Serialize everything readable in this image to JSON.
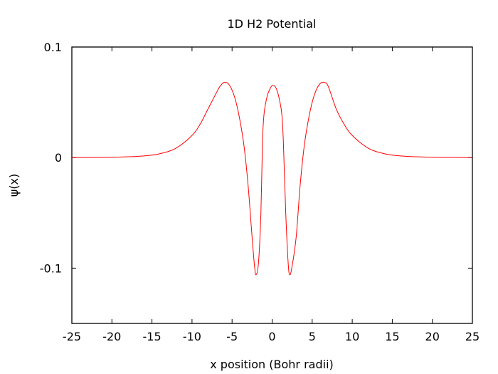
{
  "chart_data": {
    "type": "line",
    "title": "1D H2 Potential",
    "xlabel": "x position (Bohr radii)",
    "ylabel": "ψ(x)",
    "xlim": [
      -25,
      25
    ],
    "ylim": [
      -0.15,
      0.1
    ],
    "x_ticks": [
      -25,
      -20,
      -15,
      -10,
      -5,
      0,
      5,
      10,
      15,
      20,
      25
    ],
    "x_tick_labels": [
      "-25",
      "-20",
      "-15",
      "-10",
      "-5",
      "0",
      "5",
      "10",
      "15",
      "20",
      "25"
    ],
    "y_ticks": [
      -0.1,
      0,
      0.1
    ],
    "y_tick_labels": [
      "-0.1",
      "0",
      "0.1"
    ],
    "grid": false,
    "legend": "none",
    "series": [
      {
        "color": "#ff0000",
        "x": [
          -25,
          -20,
          -16,
          -14,
          -12,
          -10,
          -9,
          -8,
          -7,
          -6.5,
          -6,
          -5.5,
          -5,
          -4.5,
          -4,
          -3.5,
          -3,
          -2.5,
          -2.2,
          -2,
          -1.7,
          -1.4,
          -1.2,
          -1,
          -0.6,
          -0.2,
          0,
          0.4,
          0.8,
          1.2,
          1.4,
          1.7,
          2,
          2.2,
          2.5,
          3,
          3.5,
          4,
          4.5,
          5,
          5.5,
          6,
          6.5,
          7,
          8,
          9,
          10,
          12,
          14,
          16,
          20,
          25
        ],
        "y": [
          0,
          0.0003,
          0.0015,
          0.0035,
          0.0085,
          0.02,
          0.03,
          0.044,
          0.058,
          0.0645,
          0.068,
          0.067,
          0.061,
          0.05,
          0.033,
          0.01,
          -0.025,
          -0.072,
          -0.098,
          -0.106,
          -0.095,
          -0.05,
          0.015,
          0.04,
          0.056,
          0.063,
          0.065,
          0.064,
          0.056,
          0.04,
          0.015,
          -0.05,
          -0.095,
          -0.106,
          -0.098,
          -0.072,
          -0.025,
          0.01,
          0.033,
          0.05,
          0.061,
          0.067,
          0.068,
          0.0645,
          0.044,
          0.03,
          0.02,
          0.0085,
          0.0035,
          0.0015,
          0.0003,
          0
        ]
      }
    ]
  }
}
